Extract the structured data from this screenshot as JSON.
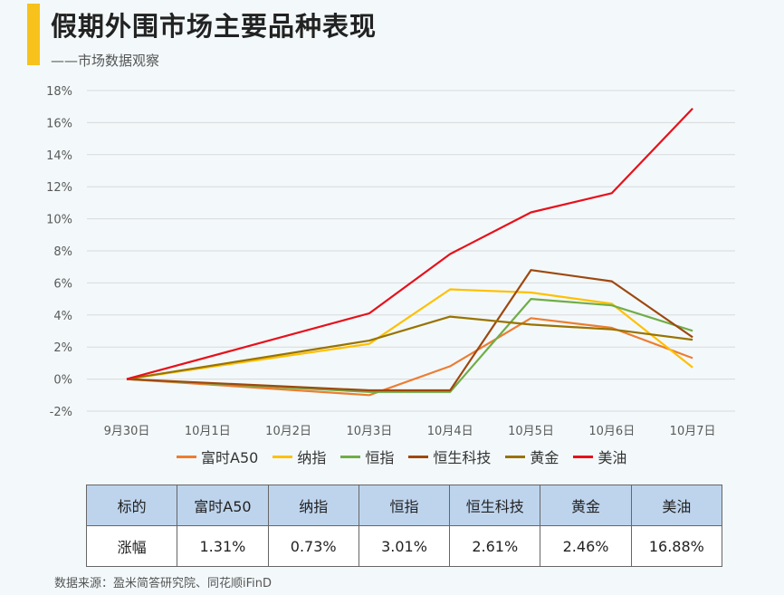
{
  "header": {
    "title": "假期外围市场主要品种表现",
    "subtitle": "——市场数据观察"
  },
  "chart_data": {
    "type": "line",
    "categories": [
      "9月30日",
      "10月1日",
      "10月2日",
      "10月3日",
      "10月4日",
      "10月5日",
      "10月6日",
      "10月7日"
    ],
    "y_ticks": [
      "18%",
      "16%",
      "14%",
      "12%",
      "10%",
      "8%",
      "6%",
      "4%",
      "2%",
      "0%",
      "-2%"
    ],
    "ylim": [
      -2,
      18
    ],
    "y_unit": "%",
    "legend_position": "bottom",
    "series": [
      {
        "name": "富时A50",
        "color": "#ed7d31",
        "values": [
          0,
          null,
          null,
          -1.0,
          0.8,
          3.8,
          3.2,
          1.31
        ]
      },
      {
        "name": "纳指",
        "color": "#ffc000",
        "values": [
          0,
          null,
          null,
          2.2,
          5.6,
          5.4,
          4.7,
          0.73
        ]
      },
      {
        "name": "恒指",
        "color": "#70ad47",
        "values": [
          0,
          null,
          null,
          -0.8,
          -0.8,
          5.0,
          4.6,
          3.01
        ]
      },
      {
        "name": "恒生科技",
        "color": "#9e480e",
        "values": [
          0,
          null,
          null,
          -0.7,
          -0.7,
          6.8,
          6.1,
          2.61
        ]
      },
      {
        "name": "黄金",
        "color": "#997300",
        "values": [
          0,
          null,
          null,
          2.4,
          3.9,
          3.4,
          3.1,
          2.46
        ]
      },
      {
        "name": "美油",
        "color": "#e8101a",
        "values": [
          0,
          null,
          null,
          4.1,
          7.8,
          10.4,
          11.6,
          16.88
        ]
      }
    ]
  },
  "table": {
    "header_label": "标的",
    "row_label": "涨幅",
    "columns": [
      {
        "name": "富时A50",
        "value": "1.31%"
      },
      {
        "name": "纳指",
        "value": "0.73%"
      },
      {
        "name": "恒指",
        "value": "3.01%"
      },
      {
        "name": "恒生科技",
        "value": "2.61%"
      },
      {
        "name": "黄金",
        "value": "2.46%"
      },
      {
        "name": "美油",
        "value": "16.88%"
      }
    ]
  },
  "footer": {
    "source": "数据来源：盈米简答研究院、同花顺iFinD"
  },
  "colors": {
    "accent": "#f7c21c",
    "background": "#f3f9fb",
    "table_header": "#bed4ed"
  }
}
